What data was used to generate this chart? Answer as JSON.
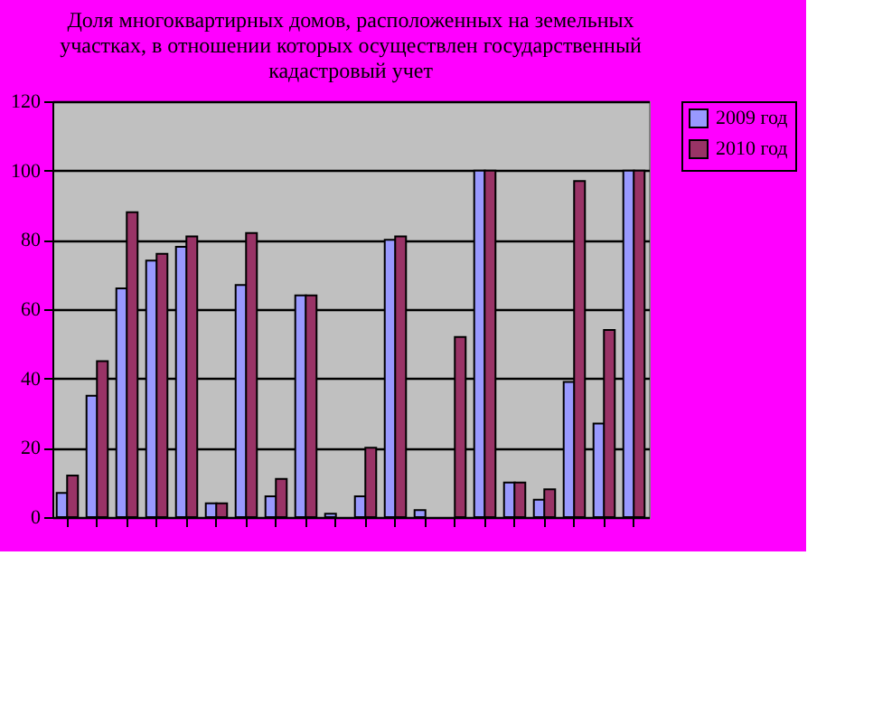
{
  "chart_data": {
    "type": "bar",
    "title": [
      "Доля многоквартирных домов, расположенных на земельных",
      "участках, в отношении которых осуществлен государственный",
      "кадастровый учет"
    ],
    "categories": [
      null,
      null,
      null,
      null,
      null,
      null,
      null,
      null,
      null,
      null,
      null,
      null,
      null,
      null,
      null,
      null,
      null,
      null,
      null,
      null
    ],
    "series": [
      {
        "name": "2009 год",
        "color": "#9999ff",
        "values": [
          7,
          35,
          66,
          74,
          78,
          4,
          67,
          6,
          64,
          1,
          6,
          80,
          2,
          0,
          100,
          10,
          5,
          39,
          27,
          100
        ]
      },
      {
        "name": "2010 год",
        "color": "#993366",
        "values": [
          12,
          45,
          88,
          76,
          81,
          4,
          82,
          11,
          64,
          0,
          20,
          81,
          0,
          52,
          100,
          10,
          8,
          97,
          54,
          100
        ]
      }
    ],
    "ylim": [
      0,
      120
    ],
    "yticks": [
      0,
      20,
      40,
      60,
      80,
      100,
      120
    ],
    "grid": "y",
    "legend": "right"
  }
}
